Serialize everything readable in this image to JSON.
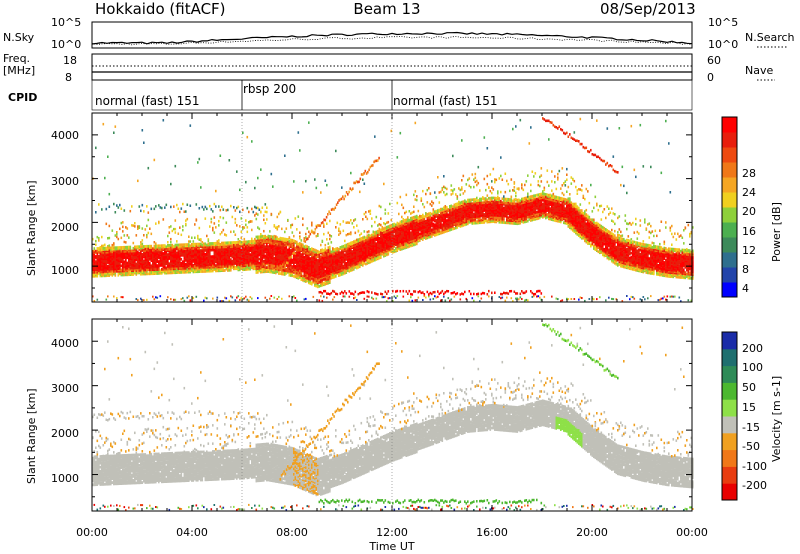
{
  "header": {
    "station": "Hokkaido (fitACF)",
    "beam": "Beam 13",
    "date": "08/Sep/2013"
  },
  "top_panels": {
    "nsky_label": "N.Sky",
    "nsearch_label": "N.Search",
    "freq_label": "Freq.",
    "freq_unit": "[MHz]",
    "nave_label": "Nave",
    "cpid_label": "CPID",
    "noise_ticks": [
      "10^5",
      "10^0"
    ],
    "freq_ticks": [
      "18",
      "8"
    ],
    "nave_ticks": [
      "60",
      "0"
    ],
    "cpid_segments": [
      {
        "label": "normal (fast) 151",
        "start_hour": 0,
        "end_hour": 6
      },
      {
        "label": "rbsp 200",
        "start_hour": 6,
        "end_hour": 12
      },
      {
        "label": "normal (fast) 151",
        "start_hour": 12,
        "end_hour": 24
      }
    ]
  },
  "chart_data": [
    {
      "type": "heatmap",
      "title": "",
      "xlabel": "Time UT",
      "ylabel": "Slant Range [km]",
      "xlim": [
        0,
        24
      ],
      "ylim": [
        180,
        4500
      ],
      "x_ticks": [
        "00:00",
        "04:00",
        "08:00",
        "12:00",
        "16:00",
        "20:00",
        "00:00"
      ],
      "y_ticks": [
        1000,
        2000,
        3000,
        4000
      ],
      "colorbar": {
        "label": "Power [dB]",
        "ticks": [
          4,
          8,
          12,
          16,
          20,
          24,
          28
        ],
        "range": [
          0,
          32
        ],
        "colors": [
          "#0000ff",
          "#2244aa",
          "#2e6f8e",
          "#3c8a5a",
          "#4caf50",
          "#8ed03a",
          "#f0d020",
          "#f5a623",
          "#f07818",
          "#ee4a10",
          "#e81e0c",
          "#ff0000"
        ]
      },
      "features": [
        {
          "name": "main band",
          "times": [
            0,
            2,
            4,
            6,
            7,
            8,
            9,
            10,
            11,
            12,
            13,
            14,
            15,
            16,
            17,
            18,
            19,
            20,
            21,
            22,
            23,
            24
          ],
          "range_km": [
            1100,
            1150,
            1200,
            1250,
            1300,
            1200,
            950,
            1150,
            1400,
            1650,
            1850,
            2050,
            2250,
            2300,
            2250,
            2400,
            2250,
            1750,
            1350,
            1200,
            1100,
            1050
          ],
          "power_db": 28
        }
      ]
    },
    {
      "type": "heatmap",
      "title": "",
      "xlabel": "Time UT",
      "ylabel": "Slant Range [km]",
      "xlim": [
        0,
        24
      ],
      "ylim": [
        180,
        4500
      ],
      "x_ticks": [
        "00:00",
        "04:00",
        "08:00",
        "12:00",
        "16:00",
        "20:00",
        "00:00"
      ],
      "y_ticks": [
        1000,
        2000,
        3000,
        4000
      ],
      "colorbar": {
        "label": "Velocity [m s-1]",
        "ticks": [
          "200",
          "100",
          "50",
          "15",
          "-15",
          "-50",
          "-100",
          "-200"
        ],
        "colors": [
          "#1a2ca8",
          "#1f6f6f",
          "#2e8b57",
          "#4cb830",
          "#8ee048",
          "#c0c0b8",
          "#f0a020",
          "#f07818",
          "#e83c10",
          "#e80000"
        ]
      },
      "features": [
        {
          "name": "ground scatter band",
          "velocity_ms": 0
        },
        {
          "name": "negative velocity patches",
          "times": [
            8.3,
            10.2,
            12.8
          ],
          "velocity_ms": -50
        },
        {
          "name": "positive velocity patches",
          "times": [
            18.8,
            19.4,
            12.2
          ],
          "velocity_ms": 50
        }
      ]
    }
  ]
}
